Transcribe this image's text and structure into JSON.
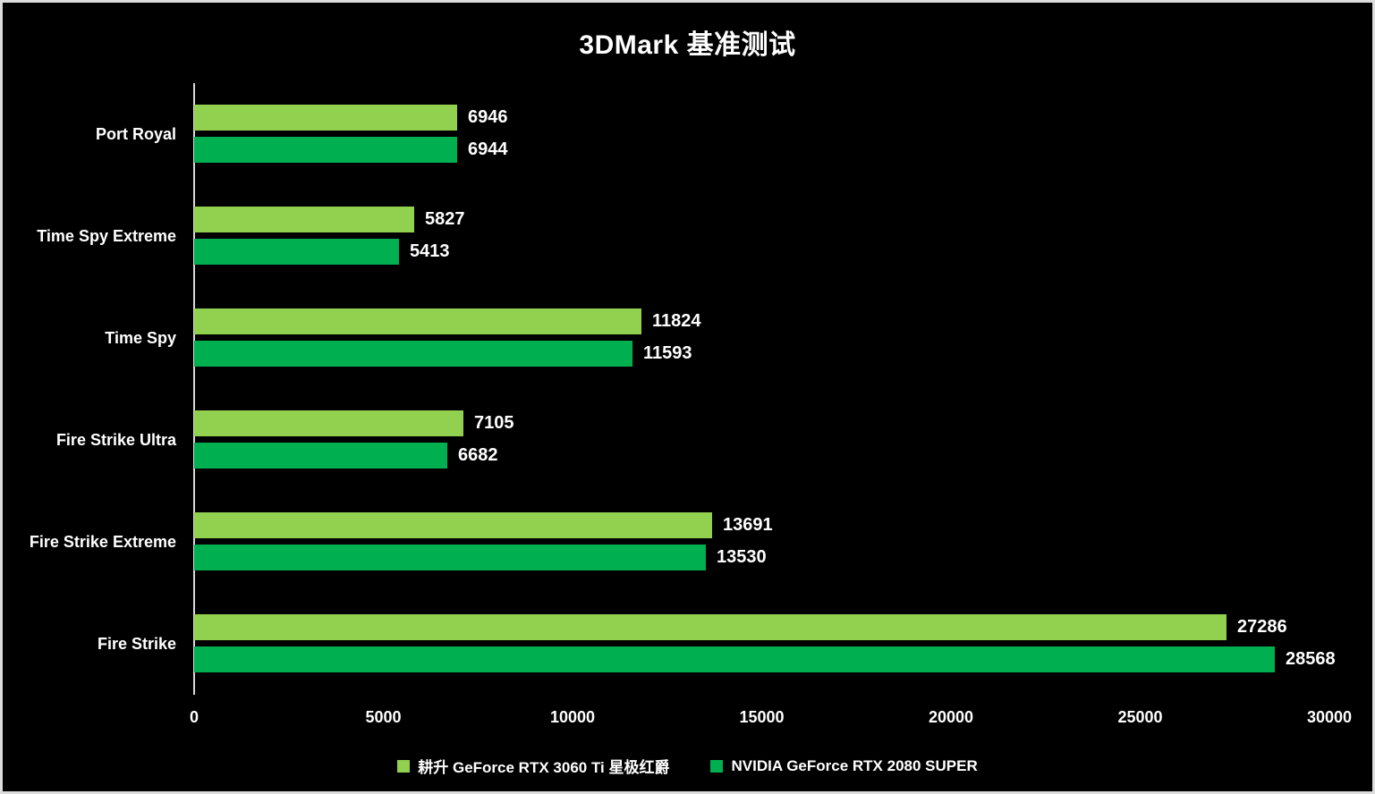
{
  "page": {
    "background_color": "#000000",
    "border_color": "#dcdcdc",
    "text_color": "#ffffff"
  },
  "chart_data": {
    "type": "bar",
    "orientation": "horizontal",
    "title": "3DMark 基准测试",
    "categories": [
      "Port Royal",
      "Time Spy Extreme",
      "Time Spy",
      "Fire Strike Ultra",
      "Fire Strike Extreme",
      "Fire Strike"
    ],
    "series": [
      {
        "name": "耕升 GeForce RTX 3060 Ti 星极红爵",
        "color": "#92d050",
        "values": [
          6946,
          5827,
          11824,
          7105,
          13691,
          27286
        ]
      },
      {
        "name": "NVIDIA GeForce RTX 2080 SUPER",
        "color": "#00b050",
        "values": [
          6944,
          5413,
          11593,
          6682,
          13530,
          28568
        ]
      }
    ],
    "x_axis": {
      "min": 0,
      "max": 30000,
      "tick_interval": 5000,
      "ticks": [
        "0",
        "5000",
        "10000",
        "15000",
        "20000",
        "25000",
        "30000"
      ]
    },
    "value_labels_shown": true,
    "grid": false,
    "legend_position": "bottom",
    "axis_line_color": "#d9d9d9"
  }
}
